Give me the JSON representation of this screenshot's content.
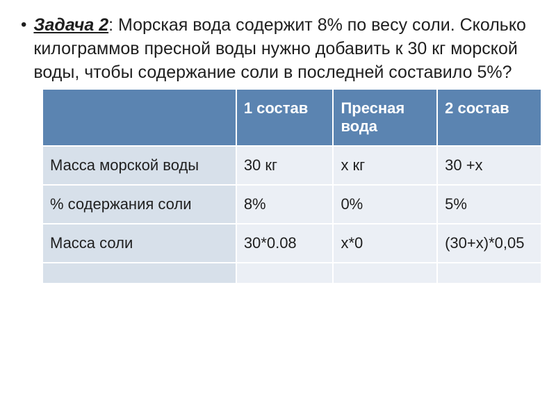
{
  "problem": {
    "title_label": "Задача 2",
    "body": ": Морская вода содержит 8% по весу соли. Сколько килограммов пресной воды нужно добавить к 30 кг морской воды, чтобы содержание соли в последней составило 5%?",
    "title_fontsize": 25,
    "body_fontsize": 25,
    "text_color": "#1f1f1f"
  },
  "table": {
    "header_bg": "#5b84b1",
    "header_text_color": "#ffffff",
    "rowlabel_bg": "#d7e0ea",
    "cell_bg": "#ebeff5",
    "border_color": "#ffffff",
    "font_size": 22,
    "columns": [
      "",
      "1 состав",
      "Пресная вода",
      "2 состав"
    ],
    "rows": [
      {
        "label": "Масса морской воды",
        "c1": "30 кг",
        "c2": "х кг",
        "c3": "30 +х"
      },
      {
        "label": "% содержания соли",
        "c1": "8%",
        "c2": "0%",
        "c3": "5%"
      },
      {
        "label": "Масса соли",
        "c1": "30*0.08",
        "c2": "х*0",
        "c3": "(30+х)*0,05"
      },
      {
        "label": "",
        "c1": "",
        "c2": "",
        "c3": ""
      }
    ]
  }
}
